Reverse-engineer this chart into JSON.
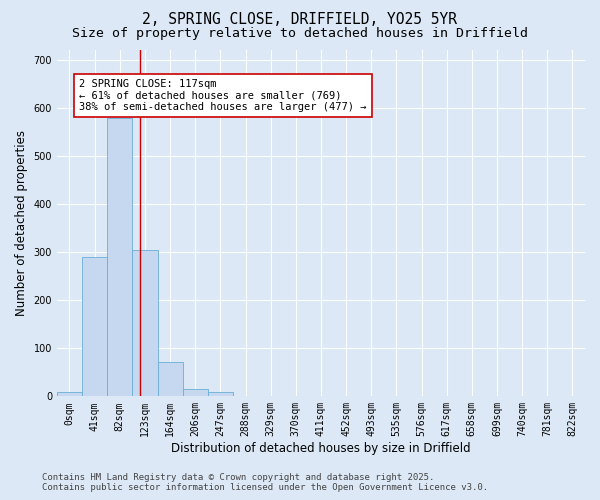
{
  "title": "2, SPRING CLOSE, DRIFFIELD, YO25 5YR",
  "subtitle": "Size of property relative to detached houses in Driffield",
  "xlabel": "Distribution of detached houses by size in Driffield",
  "ylabel": "Number of detached properties",
  "bar_values": [
    8,
    290,
    578,
    305,
    72,
    15,
    10,
    0,
    0,
    0,
    0,
    0,
    0,
    0,
    0,
    0,
    0,
    0,
    0,
    0,
    0
  ],
  "bar_labels": [
    "0sqm",
    "41sqm",
    "82sqm",
    "123sqm",
    "164sqm",
    "206sqm",
    "247sqm",
    "288sqm",
    "329sqm",
    "370sqm",
    "411sqm",
    "452sqm",
    "493sqm",
    "535sqm",
    "576sqm",
    "617sqm",
    "658sqm",
    "699sqm",
    "740sqm",
    "781sqm",
    "822sqm"
  ],
  "bar_color": "#c5d8f0",
  "bar_edge_color": "#6aaed6",
  "background_color": "#dce8f5",
  "grid_color": "#ffffff",
  "vline_x": 2.82,
  "vline_color": "#cc0000",
  "annotation_text": "2 SPRING CLOSE: 117sqm\n← 61% of detached houses are smaller (769)\n38% of semi-detached houses are larger (477) →",
  "annotation_box_color": "#ffffff",
  "annotation_box_edge": "#cc0000",
  "ylim": [
    0,
    720
  ],
  "yticks": [
    0,
    100,
    200,
    300,
    400,
    500,
    600,
    700
  ],
  "footer_line1": "Contains HM Land Registry data © Crown copyright and database right 2025.",
  "footer_line2": "Contains public sector information licensed under the Open Government Licence v3.0.",
  "title_fontsize": 10.5,
  "subtitle_fontsize": 9.5,
  "axis_label_fontsize": 8.5,
  "tick_fontsize": 7,
  "annotation_fontsize": 7.5,
  "footer_fontsize": 6.5
}
